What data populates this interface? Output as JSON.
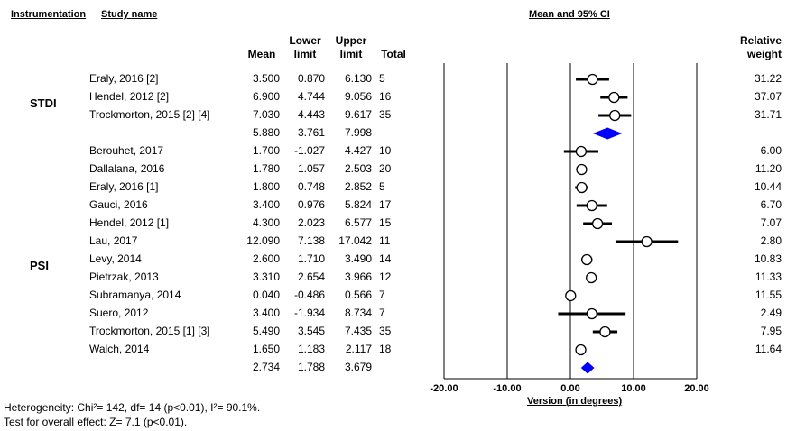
{
  "headers": {
    "instrumentation": "Instrumentation",
    "study_name": "Study name",
    "mean_ci": "Mean and 95% CI",
    "mean": "Mean",
    "lower_line1": "Lower",
    "lower_line2": "limit",
    "upper_line1": "Upper",
    "upper_line2": "limit",
    "total": "Total",
    "weight_line1": "Relative",
    "weight_line2": "weight"
  },
  "groups": [
    {
      "label": "STDI"
    },
    {
      "label": "PSI"
    }
  ],
  "rows": [
    {
      "study": "Eraly, 2016 [2]",
      "mean": "3.500",
      "lower": "0.870",
      "upper": "6.130",
      "total": "5",
      "weight": "31.22",
      "type": "study"
    },
    {
      "study": "Hendel, 2012 [2]",
      "mean": "6.900",
      "lower": "4.744",
      "upper": "9.056",
      "total": "16",
      "weight": "37.07",
      "type": "study"
    },
    {
      "study": "Trockmorton, 2015 [2] [4]",
      "mean": "7.030",
      "lower": "4.443",
      "upper": "9.617",
      "total": "35",
      "weight": "31.71",
      "type": "study"
    },
    {
      "study": "",
      "mean": "5.880",
      "lower": "3.761",
      "upper": "7.998",
      "total": "",
      "weight": "",
      "type": "summary"
    },
    {
      "study": "Berouhet, 2017",
      "mean": "1.700",
      "lower": "-1.027",
      "upper": "4.427",
      "total": "10",
      "weight": "6.00",
      "type": "study"
    },
    {
      "study": "Dallalana, 2016",
      "mean": "1.780",
      "lower": "1.057",
      "upper": "2.503",
      "total": "20",
      "weight": "11.20",
      "type": "study"
    },
    {
      "study": "Eraly, 2016 [1]",
      "mean": "1.800",
      "lower": "0.748",
      "upper": "2.852",
      "total": "5",
      "weight": "10.44",
      "type": "study"
    },
    {
      "study": "Gauci, 2016",
      "mean": "3.400",
      "lower": "0.976",
      "upper": "5.824",
      "total": "17",
      "weight": "6.70",
      "type": "study"
    },
    {
      "study": "Hendel, 2012 [1]",
      "mean": "4.300",
      "lower": "2.023",
      "upper": "6.577",
      "total": "15",
      "weight": "7.07",
      "type": "study"
    },
    {
      "study": "Lau, 2017",
      "mean": "12.090",
      "lower": "7.138",
      "upper": "17.042",
      "total": "11",
      "weight": "2.80",
      "type": "study"
    },
    {
      "study": "Levy,  2014",
      "mean": "2.600",
      "lower": "1.710",
      "upper": "3.490",
      "total": "14",
      "weight": "10.83",
      "type": "study"
    },
    {
      "study": "Pietrzak, 2013",
      "mean": "3.310",
      "lower": "2.654",
      "upper": "3.966",
      "total": "12",
      "weight": "11.33",
      "type": "study"
    },
    {
      "study": "Subramanya, 2014",
      "mean": "0.040",
      "lower": "-0.486",
      "upper": "0.566",
      "total": "7",
      "weight": "11.55",
      "type": "study"
    },
    {
      "study": "Suero, 2012",
      "mean": "3.400",
      "lower": "-1.934",
      "upper": "8.734",
      "total": "7",
      "weight": "2.49",
      "type": "study"
    },
    {
      "study": "Trockmorton, 2015 [1] [3]",
      "mean": "5.490",
      "lower": "3.545",
      "upper": "7.435",
      "total": "35",
      "weight": "7.95",
      "type": "study"
    },
    {
      "study": "Walch, 2014",
      "mean": "1.650",
      "lower": "1.183",
      "upper": "2.117",
      "total": "18",
      "weight": "11.64",
      "type": "study"
    },
    {
      "study": "",
      "mean": "2.734",
      "lower": "1.788",
      "upper": "3.679",
      "total": "",
      "weight": "",
      "type": "summary"
    }
  ],
  "footer": {
    "heterogeneity": "Heterogeneity: Chi²= 142, df= 14 (p<0.01), I²= 90.1%.",
    "overall": "Test for overall effect: Z= 7.1 (p<0.01)."
  },
  "chart_data": {
    "type": "forest",
    "xlabel": "Version (in degrees)",
    "xlim": [
      -20,
      20
    ],
    "xticks": [
      "-20.00",
      "-10.00",
      "0.00",
      "10.00",
      "20.00"
    ],
    "series": [
      {
        "name": "STDI",
        "studies": [
          {
            "study": "Eraly, 2016 [2]",
            "mean": 3.5,
            "lower": 0.87,
            "upper": 6.13
          },
          {
            "study": "Hendel, 2012 [2]",
            "mean": 6.9,
            "lower": 4.744,
            "upper": 9.056
          },
          {
            "study": "Trockmorton, 2015 [2] [4]",
            "mean": 7.03,
            "lower": 4.443,
            "upper": 9.617
          }
        ],
        "summary": {
          "mean": 5.88,
          "lower": 3.761,
          "upper": 7.998
        }
      },
      {
        "name": "PSI",
        "studies": [
          {
            "study": "Berouhet, 2017",
            "mean": 1.7,
            "lower": -1.027,
            "upper": 4.427
          },
          {
            "study": "Dallalana, 2016",
            "mean": 1.78,
            "lower": 1.057,
            "upper": 2.503
          },
          {
            "study": "Eraly, 2016 [1]",
            "mean": 1.8,
            "lower": 0.748,
            "upper": 2.852
          },
          {
            "study": "Gauci, 2016",
            "mean": 3.4,
            "lower": 0.976,
            "upper": 5.824
          },
          {
            "study": "Hendel, 2012 [1]",
            "mean": 4.3,
            "lower": 2.023,
            "upper": 6.577
          },
          {
            "study": "Lau, 2017",
            "mean": 12.09,
            "lower": 7.138,
            "upper": 17.042
          },
          {
            "study": "Levy,  2014",
            "mean": 2.6,
            "lower": 1.71,
            "upper": 3.49
          },
          {
            "study": "Pietrzak, 2013",
            "mean": 3.31,
            "lower": 2.654,
            "upper": 3.966
          },
          {
            "study": "Subramanya, 2014",
            "mean": 0.04,
            "lower": -0.486,
            "upper": 0.566
          },
          {
            "study": "Suero, 2012",
            "mean": 3.4,
            "lower": -1.934,
            "upper": 8.734
          },
          {
            "study": "Trockmorton, 2015 [1] [3]",
            "mean": 5.49,
            "lower": 3.545,
            "upper": 7.435
          },
          {
            "study": "Walch, 2014",
            "mean": 1.65,
            "lower": 1.183,
            "upper": 2.117
          }
        ],
        "summary": {
          "mean": 2.734,
          "lower": 1.788,
          "upper": 3.679
        }
      }
    ],
    "summary_color": "#0000ff",
    "point_color": "#000000"
  }
}
